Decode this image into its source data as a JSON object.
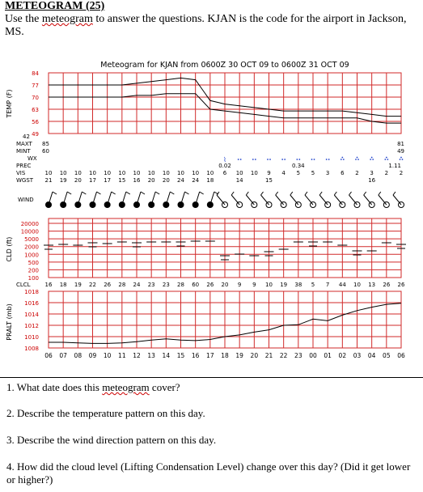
{
  "header": {
    "title": "METEOGRAM (25)",
    "intro_before": "Use the ",
    "intro_link": "meteogram",
    "intro_after": " to answer the questions.  KJAN is the code for the airport in Jackson, MS."
  },
  "meteogram": {
    "chart_title": "Meteogram for KJAN from 0600Z 30 OCT 09 to 0600Z 31 OCT 09",
    "hours": [
      "06",
      "07",
      "08",
      "09",
      "10",
      "11",
      "12",
      "13",
      "14",
      "15",
      "16",
      "17",
      "18",
      "19",
      "20",
      "21",
      "22",
      "23",
      "00",
      "01",
      "02",
      "03",
      "04",
      "05",
      "06"
    ],
    "temp": {
      "ylabel": "TEMP (F)",
      "ticks": [
        "84",
        "77",
        "70",
        "63",
        "56",
        "49"
      ],
      "ylim": [
        49,
        84
      ],
      "temperature": [
        77,
        77,
        77,
        77,
        77,
        77,
        78,
        79,
        80,
        81,
        80,
        68,
        66,
        65,
        64,
        63,
        62,
        62,
        62,
        62,
        62,
        61,
        60,
        59,
        59
      ],
      "dewpoint": [
        70,
        70,
        70,
        70,
        70,
        70,
        71,
        71,
        72,
        72,
        72,
        63,
        62,
        61,
        60,
        59,
        58,
        58,
        58,
        58,
        58,
        58,
        56,
        55,
        55
      ]
    },
    "weather_rows": {
      "maxt_label": "MAXT",
      "maxt_value": "85",
      "mint_label": "MINT",
      "mint_value": "60",
      "wx_label": "WX",
      "prec_label": "PREC",
      "vis_label": "VIS",
      "wgst_label": "WGST",
      "left_maxt_num": "42",
      "right_maxt": "81",
      "right_mint": "49",
      "prec_a": "0.02",
      "prec_b": "0.34",
      "prec_c": "1.11",
      "vis_values": [
        "10",
        "10",
        "10",
        "10",
        "10",
        "10",
        "10",
        "10",
        "10",
        "10",
        "10",
        "10",
        "6",
        "10",
        "10",
        "9",
        "4",
        "5",
        "5",
        "3",
        "6",
        "2",
        "3",
        "2",
        "2"
      ],
      "wgst_values": [
        "21",
        "19",
        "20",
        "17",
        "17",
        "15",
        "16",
        "20",
        "20",
        "24",
        "24",
        "18",
        "",
        "14",
        "",
        "15",
        "",
        "",
        "",
        "",
        "",
        "",
        "16",
        "",
        ""
      ]
    },
    "wind_label": "WIND",
    "cloud": {
      "ylabel": "CLD (ft)",
      "ticks": [
        "20000",
        "10000",
        "5000",
        "2000",
        "1000",
        "500",
        "200",
        "100"
      ],
      "clcl_label": "CLCL",
      "clcl_values": [
        "16",
        "18",
        "19",
        "22",
        "26",
        "28",
        "24",
        "23",
        "23",
        "28",
        "60",
        "26",
        "20",
        "9",
        "9",
        "10",
        "19",
        "38",
        "5",
        "7",
        "44",
        "10",
        "13",
        "26",
        "26"
      ]
    },
    "pressure": {
      "ylabel": "PRALT (mb)",
      "ticks": [
        "1018",
        "1016",
        "1014",
        "1012",
        "1010",
        "1008"
      ],
      "ylim": [
        1008,
        1018
      ],
      "values": [
        1009.0,
        1009.0,
        1008.9,
        1008.8,
        1008.8,
        1008.9,
        1009.1,
        1009.4,
        1009.6,
        1009.4,
        1009.3,
        1009.5,
        1010.0,
        1010.3,
        1010.8,
        1011.2,
        1012.0,
        1012.1,
        1013.1,
        1012.8,
        1013.8,
        1014.6,
        1015.2,
        1015.7,
        1015.9
      ]
    }
  },
  "questions": [
    {
      "before": "1.  What date does this ",
      "link": "meteogram",
      "after": " cover?"
    },
    {
      "before": "2.  Describe the temperature pattern on this day.",
      "link": "",
      "after": ""
    },
    {
      "before": "3.  Describe the wind direction pattern on this day.",
      "link": "",
      "after": ""
    },
    {
      "before": "4.  How did the cloud level (Lifting Condensation Level) change over this day? (Did it get lower or higher?)",
      "link": "",
      "after": ""
    }
  ],
  "colors": {
    "grid": "#d12a2a",
    "line": "#000000"
  }
}
